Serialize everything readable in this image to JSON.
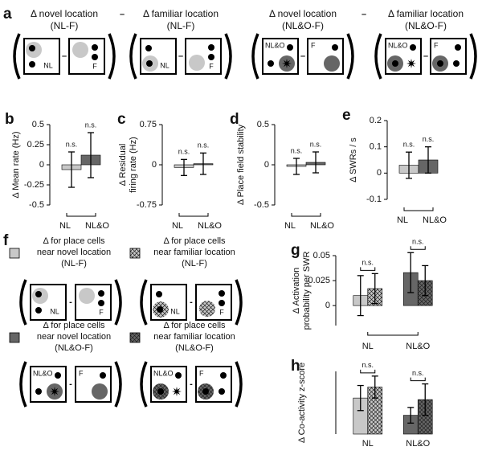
{
  "panel_a": {
    "label": "a",
    "minus": "–",
    "terms": [
      {
        "title": "Δ novel location",
        "subtitle": "(NL-F)",
        "box_labels": [
          "NL",
          "F"
        ]
      },
      {
        "title": "Δ familiar location",
        "subtitle": "(NL-F)",
        "box_labels": [
          "NL",
          "F"
        ]
      },
      {
        "title": "Δ novel location",
        "subtitle": "(NL&O-F)",
        "box_labels": [
          "NL&O",
          "F"
        ]
      },
      {
        "title": "Δ familiar location",
        "subtitle": "(NL&O-F)",
        "box_labels": [
          "NL&O",
          "F"
        ]
      }
    ]
  },
  "panel_f": {
    "label": "f",
    "minus": "-",
    "items": [
      {
        "lines": [
          "Δ for place cells",
          "near novel location",
          "(NL-F)"
        ],
        "box_labels": [
          "NL",
          "F"
        ]
      },
      {
        "lines": [
          "Δ for place cells",
          "near familiar location",
          "(NL-F)"
        ],
        "box_labels": [
          "NL",
          "F"
        ]
      },
      {
        "lines": [
          "Δ for place cells",
          "near novel location",
          "(NL&O-F)"
        ],
        "box_labels": [
          "NL&O",
          "F"
        ]
      },
      {
        "lines": [
          "Δ for place cells",
          "near familiar location",
          "(NL&O-F)"
        ],
        "box_labels": [
          "NL&O",
          "F"
        ]
      }
    ]
  },
  "chart_data": [
    {
      "type": "bar",
      "panel": "b",
      "ylabel": [
        "Δ Mean rate (Hz)"
      ],
      "categories": [
        "NL",
        "NL&O"
      ],
      "colors": [
        "#c8c8c8",
        "#666666"
      ],
      "values": [
        -0.06,
        0.12
      ],
      "errors": [
        0.22,
        0.28
      ],
      "bar_labels": [
        "n.s.",
        "n.s."
      ],
      "ylim": [
        -0.5,
        0.5
      ],
      "yticks": [
        -0.5,
        -0.25,
        0,
        0.25,
        0.5
      ]
    },
    {
      "type": "bar",
      "panel": "c",
      "ylabel": [
        "Δ Residual",
        "firing rate (Hz)"
      ],
      "categories": [
        "NL",
        "NL&O"
      ],
      "colors": [
        "#c8c8c8",
        "#666666"
      ],
      "values": [
        -0.05,
        0.02
      ],
      "errors": [
        0.15,
        0.2
      ],
      "bar_labels": [
        "n.s.",
        "n.s."
      ],
      "ylim": [
        -0.75,
        0.75
      ],
      "yticks": [
        -0.75,
        0,
        0.75
      ]
    },
    {
      "type": "bar",
      "panel": "d",
      "ylabel": [
        "Δ Place field stability"
      ],
      "categories": [
        "NL",
        "NL&O"
      ],
      "colors": [
        "#c8c8c8",
        "#666666"
      ],
      "values": [
        -0.02,
        0.03
      ],
      "errors": [
        0.1,
        0.13
      ],
      "bar_labels": [
        "n.s.",
        "n.s."
      ],
      "ylim": [
        -0.5,
        0.5
      ],
      "yticks": [
        -0.5,
        0,
        0.5
      ]
    },
    {
      "type": "bar",
      "panel": "e",
      "ylabel": [
        "Δ SWRs / s"
      ],
      "categories": [
        "NL",
        "NL&O"
      ],
      "colors": [
        "#c8c8c8",
        "#666666"
      ],
      "values": [
        0.03,
        0.05
      ],
      "errors": [
        0.05,
        0.05
      ],
      "bar_labels": [
        "n.s.",
        "n.s."
      ],
      "ylim": [
        -0.1,
        0.2
      ],
      "yticks": [
        -0.1,
        0,
        0.1,
        0.2
      ]
    },
    {
      "type": "grouped_bar",
      "panel": "g",
      "ylabel": [
        "Δ Activation",
        "probability per SWR"
      ],
      "categories": [
        "NL",
        "NL&O"
      ],
      "group_labels": [
        "n.s.",
        "n.s."
      ],
      "ylim": [
        -0.02,
        0.05
      ],
      "yticks": [
        0,
        0.025,
        0.05
      ],
      "series": [
        {
          "colors": [
            "#c8c8c8",
            "#666666"
          ],
          "hatch": false,
          "values": [
            0.01,
            0.033
          ],
          "errors": [
            0.02,
            0.02
          ]
        },
        {
          "colors": [
            "#c8c8c8",
            "#666666"
          ],
          "hatch": true,
          "values": [
            0.017,
            0.025
          ],
          "errors": [
            0.015,
            0.015
          ]
        }
      ]
    },
    {
      "type": "grouped_bar",
      "panel": "h",
      "ylabel": [
        "Δ Co-activity z-score"
      ],
      "categories": [
        "NL",
        "NL&O"
      ],
      "group_labels": [
        "n.s.",
        "n.s."
      ],
      "ylim": [
        0,
        2
      ],
      "series": [
        {
          "colors": [
            "#c8c8c8",
            "#666666"
          ],
          "hatch": false,
          "values": [
            1.15,
            0.6
          ],
          "errors": [
            0.4,
            0.25
          ]
        },
        {
          "colors": [
            "#c8c8c8",
            "#666666"
          ],
          "hatch": true,
          "values": [
            1.5,
            1.1
          ],
          "errors": [
            0.35,
            0.5
          ]
        }
      ]
    }
  ]
}
